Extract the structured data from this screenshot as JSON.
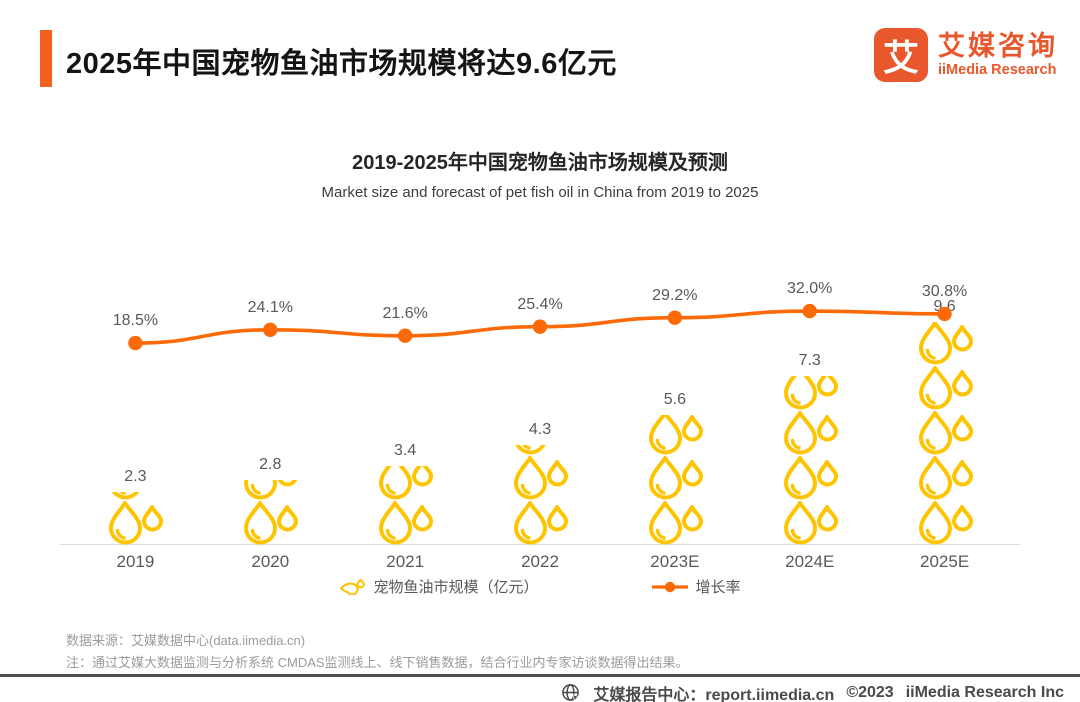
{
  "header": {
    "title": "2025年中国宠物鱼油市场规模将达9.6亿元",
    "logo": {
      "mark": "艾",
      "name_cn": "艾媒咨询",
      "name_en": "iiMedia Research"
    }
  },
  "chart": {
    "title": "2019-2025年中国宠物鱼油市场规模及预测",
    "subtitle": "Market size and forecast of pet fish oil in China from 2019 to 2025"
  },
  "chart_data": {
    "type": "bar",
    "subtype": "pictograph-bar + line combo",
    "categories": [
      "2019",
      "2020",
      "2021",
      "2022",
      "2023E",
      "2024E",
      "2025E"
    ],
    "series": [
      {
        "name": "宠物鱼油市规模（亿元）",
        "type": "pictograph-bar",
        "icon": "oil-drop",
        "unit": "亿元",
        "color": "#FFC400",
        "values": [
          2.3,
          2.8,
          3.4,
          4.3,
          5.6,
          7.3,
          9.6
        ],
        "value_labels": [
          "2.3",
          "2.8",
          "3.4",
          "4.3",
          "5.6",
          "7.3",
          "9.6"
        ]
      },
      {
        "name": "增长率",
        "type": "line",
        "color": "#FB6A07",
        "values_pct": [
          18.5,
          24.1,
          21.6,
          25.4,
          29.2,
          32.0,
          30.8
        ],
        "pct_labels": [
          "18.5%",
          "24.1%",
          "21.6%",
          "25.4%",
          "29.2%",
          "32.0%",
          "30.8%"
        ]
      }
    ],
    "ylabel": "",
    "xlabel": "",
    "grid": false,
    "legend_position": "bottom"
  },
  "legend": {
    "market_size_label": "宠物鱼油市规模（亿元）",
    "growth_label": "增长率"
  },
  "notes": {
    "source": "数据来源：艾媒数据中心(data.iimedia.cn)",
    "note": "注：通过艾媒大数据监测与分析系统 CMDAS监测线上、线下销售数据，结合行业内专家访谈数据得出结果。"
  },
  "footer": {
    "report_center": "艾媒报告中心：report.iimedia.cn",
    "copyright": "©2023",
    "company": "iiMedia Research Inc"
  },
  "colors": {
    "accent_orange": "#F4611C",
    "brand_orange": "#E8582C",
    "line_orange": "#FB6A07",
    "drop_gold": "#FFC400",
    "label_gray": "#595959"
  }
}
